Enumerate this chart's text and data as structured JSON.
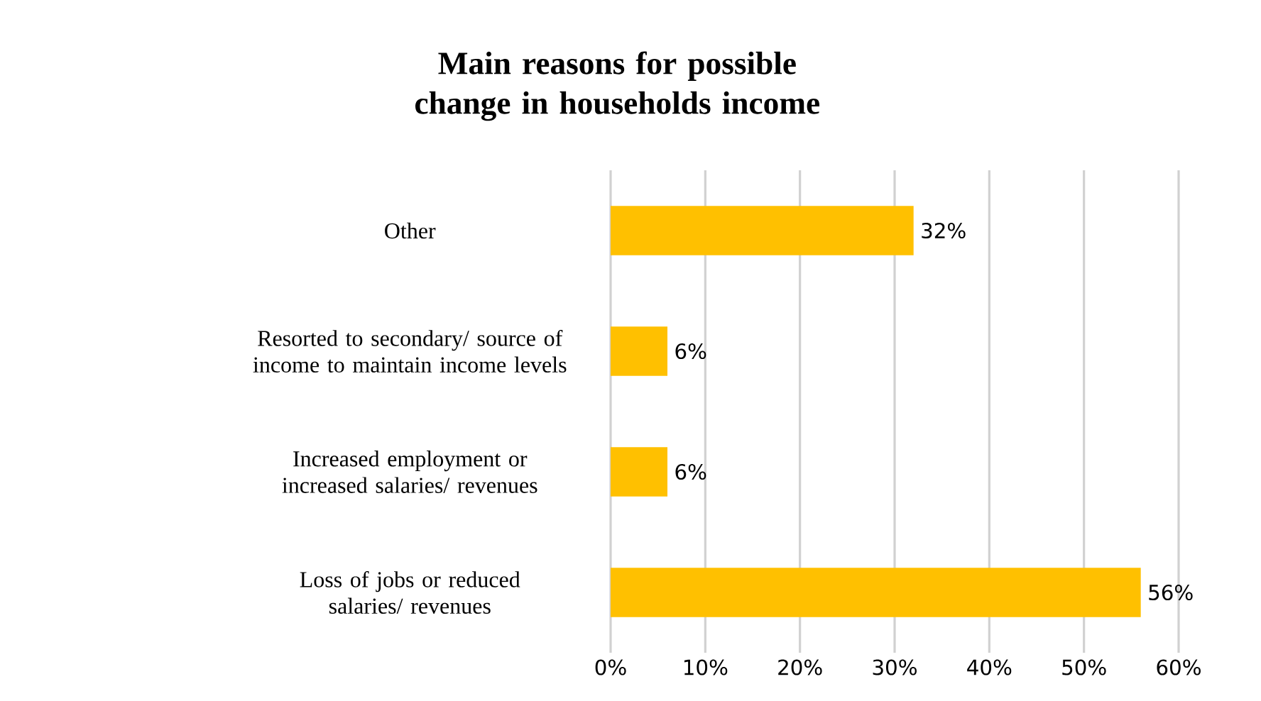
{
  "chart_data": {
    "type": "bar",
    "orientation": "horizontal",
    "title": "Main reasons for possible change in households income",
    "categories": [
      "Other",
      "Resorted to secondary/ source of income to maintain income levels",
      "Increased employment or increased salaries/ revenues",
      "Loss of jobs or reduced salaries/ revenues"
    ],
    "values": [
      32,
      6,
      6,
      56
    ],
    "color": "#ffc000",
    "value_labels": [
      "32%",
      "6%",
      "6%",
      "56%"
    ],
    "xlim": [
      0,
      60
    ],
    "xticks": [
      {
        "value": 0,
        "label": "0%"
      },
      {
        "value": 10,
        "label": "10%"
      },
      {
        "value": 20,
        "label": "20%"
      },
      {
        "value": 30,
        "label": "30%"
      },
      {
        "value": 40,
        "label": "40%"
      },
      {
        "value": 50,
        "label": "50%"
      },
      {
        "value": 60,
        "label": "60%"
      }
    ],
    "grid": "x"
  }
}
